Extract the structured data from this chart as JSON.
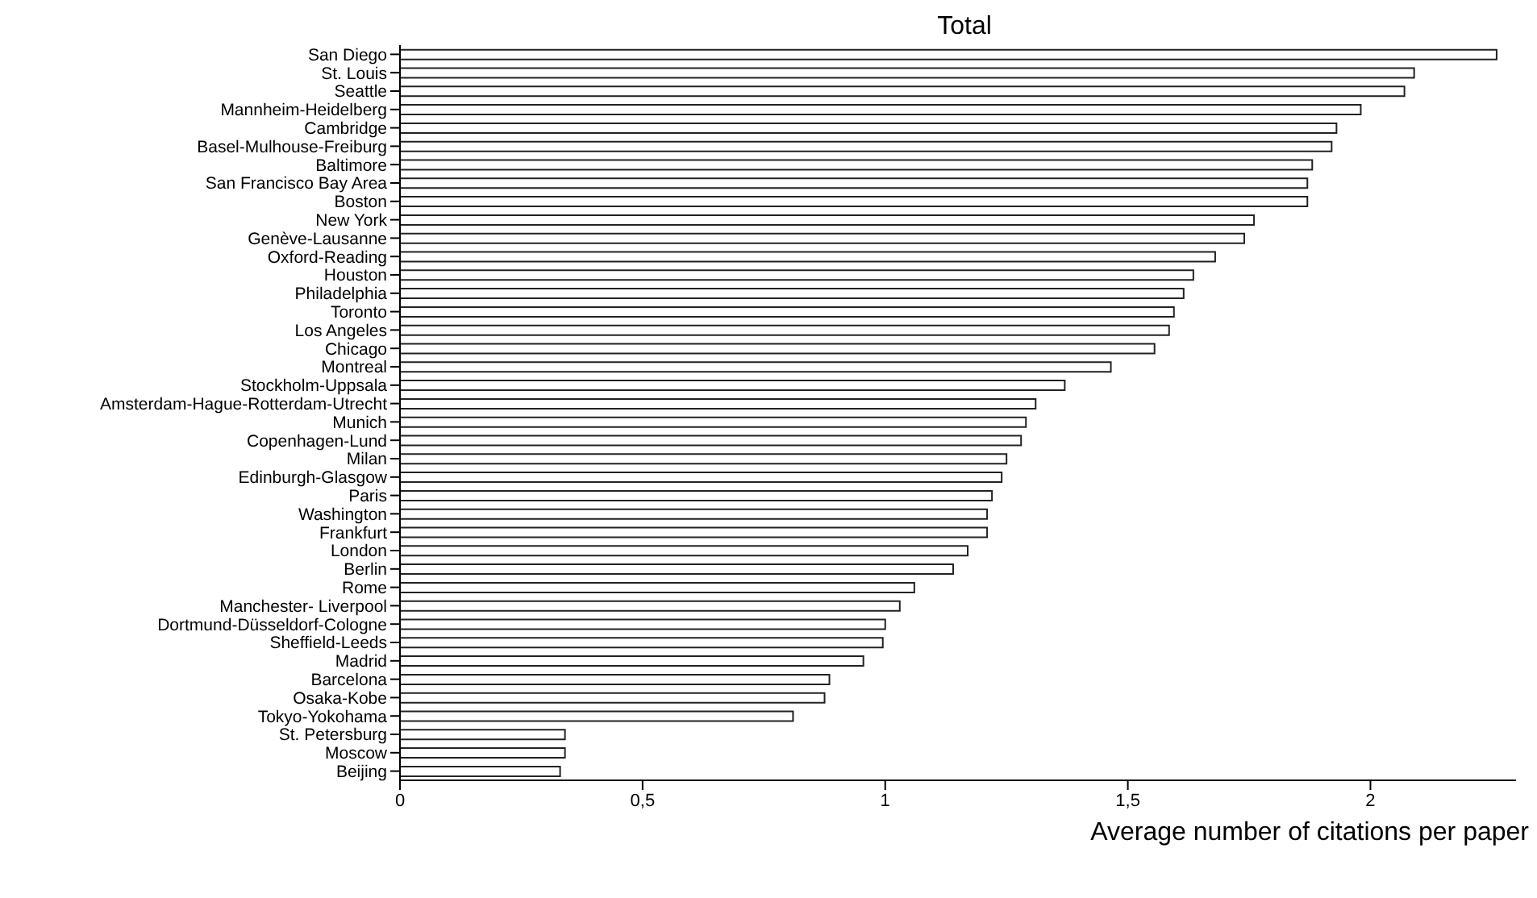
{
  "chart_data": {
    "type": "bar",
    "orientation": "horizontal",
    "title": "Total",
    "xlabel": "Average number of citations per paper",
    "categories": [
      "San Diego",
      "St. Louis",
      "Seattle",
      "Mannheim-Heidelberg",
      "Cambridge",
      "Basel-Mulhouse-Freiburg",
      "Baltimore",
      "San Francisco Bay Area",
      "Boston",
      "New York",
      "Genève-Lausanne",
      "Oxford-Reading",
      "Houston",
      "Philadelphia",
      "Toronto",
      "Los Angeles",
      "Chicago",
      "Montreal",
      "Stockholm-Uppsala",
      "Amsterdam-Hague-Rotterdam-Utrecht",
      "Munich",
      "Copenhagen-Lund",
      "Milan",
      "Edinburgh-Glasgow",
      "Paris",
      "Washington",
      "Frankfurt",
      "London",
      "Berlin",
      "Rome",
      "Manchester- Liverpool",
      "Dortmund-Düsseldorf-Cologne",
      "Sheffield-Leeds",
      "Madrid",
      "Barcelona",
      "Osaka-Kobe",
      "Tokyo-Yokohama",
      "St. Petersburg",
      "Moscow",
      "Beijing"
    ],
    "values": [
      2.26,
      2.09,
      2.07,
      1.98,
      1.93,
      1.92,
      1.88,
      1.87,
      1.87,
      1.76,
      1.74,
      1.68,
      1.635,
      1.615,
      1.595,
      1.585,
      1.555,
      1.465,
      1.37,
      1.31,
      1.29,
      1.28,
      1.25,
      1.24,
      1.22,
      1.21,
      1.21,
      1.17,
      1.14,
      1.06,
      1.03,
      1.0,
      0.995,
      0.955,
      0.885,
      0.875,
      0.81,
      0.34,
      0.34,
      0.33
    ],
    "color": "#ffffff",
    "xlim": [
      0,
      2.3
    ],
    "xticks": [
      0,
      {
        "value": 0.5,
        "label": "0,5"
      },
      1,
      {
        "value": 1.5,
        "label": "1,5"
      },
      2
    ],
    "grid": false,
    "legend": false
  }
}
